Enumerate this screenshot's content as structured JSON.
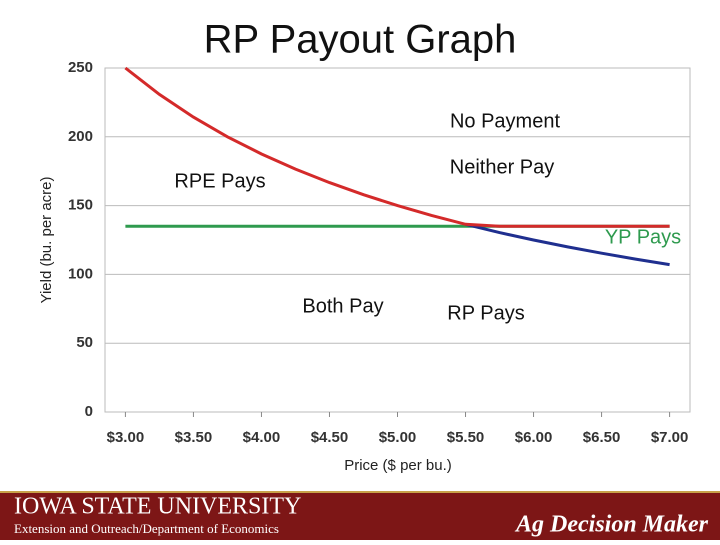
{
  "chart_data": {
    "type": "line",
    "title": "RP Payout Graph",
    "x_label": "Price ($ per bu.)",
    "y_label": "Yield (bu. per acre)",
    "x": [
      3.0,
      3.25,
      3.5,
      3.75,
      4.0,
      4.25,
      4.5,
      4.75,
      5.0,
      5.25,
      5.5,
      5.75,
      6.0,
      6.25,
      6.5,
      6.75,
      7.0
    ],
    "series": [
      {
        "color": "#2e9a4e",
        "values": [
          135,
          135,
          135,
          135,
          135,
          135,
          135,
          135,
          135,
          135,
          135,
          135,
          135,
          135,
          135,
          135,
          135
        ]
      },
      {
        "color": "#1f2f8f",
        "values": [
          null,
          null,
          null,
          null,
          null,
          null,
          null,
          null,
          null,
          null,
          136.4,
          130.4,
          125.0,
          120.0,
          115.4,
          111.1,
          107.1
        ]
      },
      {
        "color": "#d42a2a",
        "values": [
          250,
          230.8,
          214.3,
          200,
          187.5,
          176.5,
          166.7,
          157.9,
          150,
          142.9,
          136.4,
          135,
          135,
          135,
          135,
          135,
          135
        ]
      }
    ],
    "xlim": [
      2.85,
      7.15
    ],
    "xticks": [
      {
        "value": 3.0,
        "label": "$3.00"
      },
      {
        "value": 3.5,
        "label": "$3.50"
      },
      {
        "value": 4.0,
        "label": "$4.00"
      },
      {
        "value": 4.5,
        "label": "$4.50"
      },
      {
        "value": 5.0,
        "label": "$5.00"
      },
      {
        "value": 5.5,
        "label": "$5.50"
      },
      {
        "value": 6.0,
        "label": "$6.00"
      },
      {
        "value": 6.5,
        "label": "$6.50"
      },
      {
        "value": 7.0,
        "label": "$7.00"
      }
    ],
    "ylim": [
      0,
      250
    ],
    "yticks": [
      0,
      50,
      100,
      150,
      200,
      250
    ],
    "grid": true,
    "annotations": [
      {
        "text": "No Payment",
        "color": "#111111"
      },
      {
        "text": "Neither Pay",
        "color": "#111111"
      },
      {
        "text": "RPE Pays",
        "color": "#111111"
      },
      {
        "text": "YP Pays",
        "color": "#2e9a4e"
      },
      {
        "text": "Both Pay",
        "color": "#111111"
      },
      {
        "text": "RP Pays",
        "color": "#111111"
      }
    ]
  },
  "footer": {
    "university": "IOWA STATE UNIVERSITY",
    "department": "Extension and Outreach/Department of Economics",
    "brand": "Ag Decision Maker"
  }
}
